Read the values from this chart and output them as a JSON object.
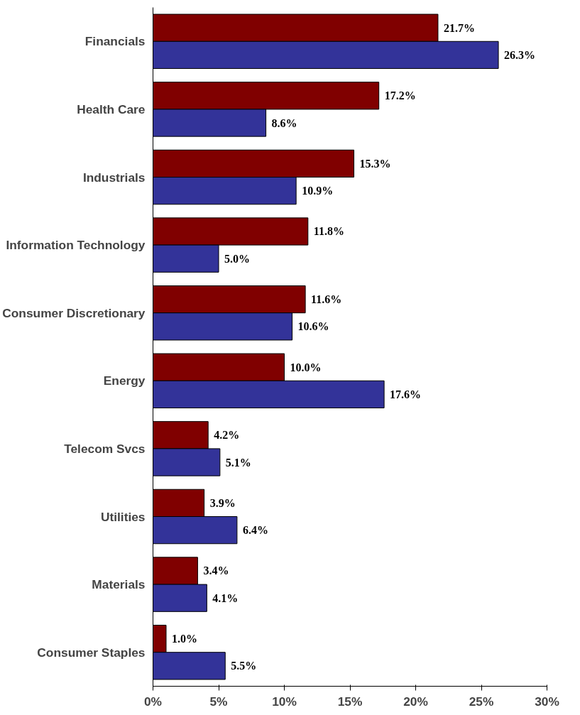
{
  "chart_data": {
    "type": "bar",
    "orientation": "horizontal",
    "categories": [
      "Financials",
      "Health Care",
      "Industrials",
      "Information Technology",
      "Consumer Discretionary",
      "Energy",
      "Telecom Svcs",
      "Utilities",
      "Materials",
      "Consumer Staples"
    ],
    "series": [
      {
        "color": "#800000",
        "values": [
          21.7,
          17.2,
          15.3,
          11.8,
          11.6,
          10.0,
          4.2,
          3.9,
          3.4,
          1.0
        ],
        "value_labels": [
          "21.7%",
          "17.2%",
          "15.3%",
          "11.8%",
          "11.6%",
          "10.0%",
          "4.2%",
          "3.9%",
          "3.4%",
          "1.0%"
        ]
      },
      {
        "color": "#333399",
        "values": [
          26.3,
          8.6,
          10.9,
          5.0,
          10.6,
          17.6,
          5.1,
          6.4,
          4.1,
          5.5
        ],
        "value_labels": [
          "26.3%",
          "8.6%",
          "10.9%",
          "5.0%",
          "10.6%",
          "17.6%",
          "5.1%",
          "6.4%",
          "4.1%",
          "5.5%"
        ]
      }
    ],
    "xlim": [
      0,
      30
    ],
    "xticks": [
      {
        "value": 0,
        "label": "0%"
      },
      {
        "value": 5,
        "label": "5%"
      },
      {
        "value": 10,
        "label": "10%"
      },
      {
        "value": 15,
        "label": "15%"
      },
      {
        "value": 20,
        "label": "20%"
      },
      {
        "value": 25,
        "label": "25%"
      },
      {
        "value": 30,
        "label": "30%"
      }
    ],
    "grid": false
  }
}
